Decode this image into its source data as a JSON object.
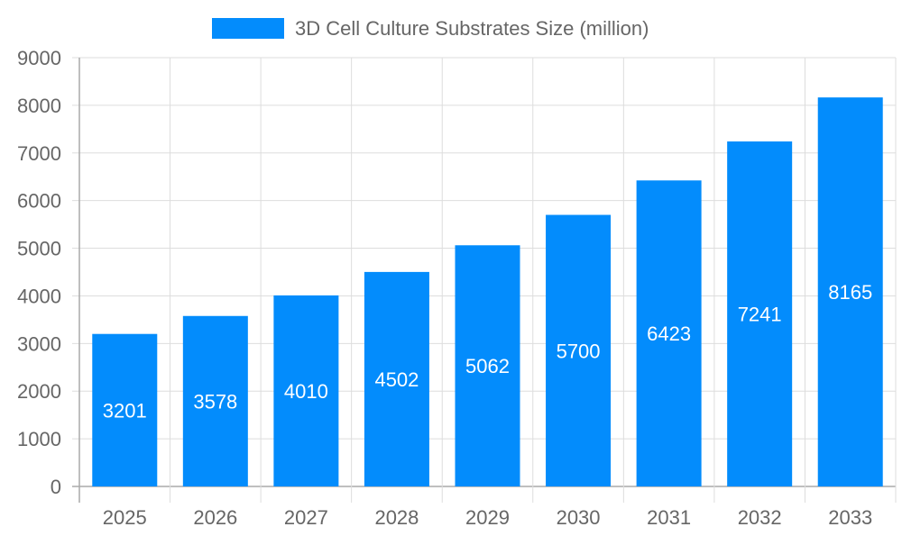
{
  "chart_data": {
    "type": "bar",
    "title": "",
    "xlabel": "",
    "ylabel": "",
    "categories": [
      "2025",
      "2026",
      "2027",
      "2028",
      "2029",
      "2030",
      "2031",
      "2032",
      "2033"
    ],
    "series": [
      {
        "name": "3D Cell Culture Substrates Size (million)",
        "values": [
          3201,
          3578,
          4010,
          4502,
          5062,
          5700,
          6423,
          7241,
          8165
        ]
      }
    ],
    "ylim": [
      0,
      9000
    ],
    "yticks": [
      0,
      1000,
      2000,
      3000,
      4000,
      5000,
      6000,
      7000,
      8000,
      9000
    ],
    "grid": true,
    "legend": "top",
    "data_labels": true,
    "colors": {
      "bar": "#038cfc",
      "label": "#ffffff",
      "text": "#666666",
      "grid": "#dddddd",
      "axis": "#aaaaaa"
    }
  }
}
